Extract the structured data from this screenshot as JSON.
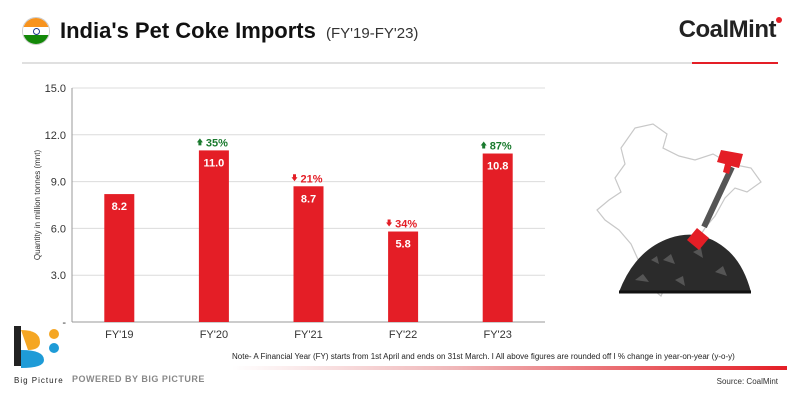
{
  "header": {
    "title": "India's Pet Coke Imports",
    "subtitle": "(FY'19-FY'23)",
    "brand": "CoalMint"
  },
  "chart_data": {
    "type": "bar",
    "categories": [
      "FY'19",
      "FY'20",
      "FY'21",
      "FY'22",
      "FY'23"
    ],
    "values": [
      8.2,
      11.0,
      8.7,
      5.8,
      10.8
    ],
    "value_labels": [
      "8.2",
      "11.0",
      "8.7",
      "5.8",
      "10.8"
    ],
    "yoy_change": [
      null,
      "35%",
      "21%",
      "34%",
      "87%"
    ],
    "yoy_direction": [
      null,
      "up",
      "down",
      "down",
      "up"
    ],
    "ylabel": "Quantity in million tonnes (mnt)",
    "ylim": [
      0,
      15
    ],
    "yticks": [
      "15.0",
      "12.0",
      "9.0",
      "6.0",
      "3.0",
      "-"
    ],
    "ytick_values": [
      15,
      12,
      9,
      6,
      3,
      0
    ],
    "grid": true,
    "bar_color": "#e41e26",
    "up_color": "#1a7a2e",
    "down_color": "#e41e26"
  },
  "footer": {
    "logo_text": "Big Picture",
    "powered_by": "POWERED BY BIG PICTURE",
    "note": "Note- A Financial Year (FY) starts from 1st April and ends on 31st March.  I  All above figures are rounded off  I  % change in year-on-year (y-o-y)",
    "source": "Source: CoalMint"
  }
}
